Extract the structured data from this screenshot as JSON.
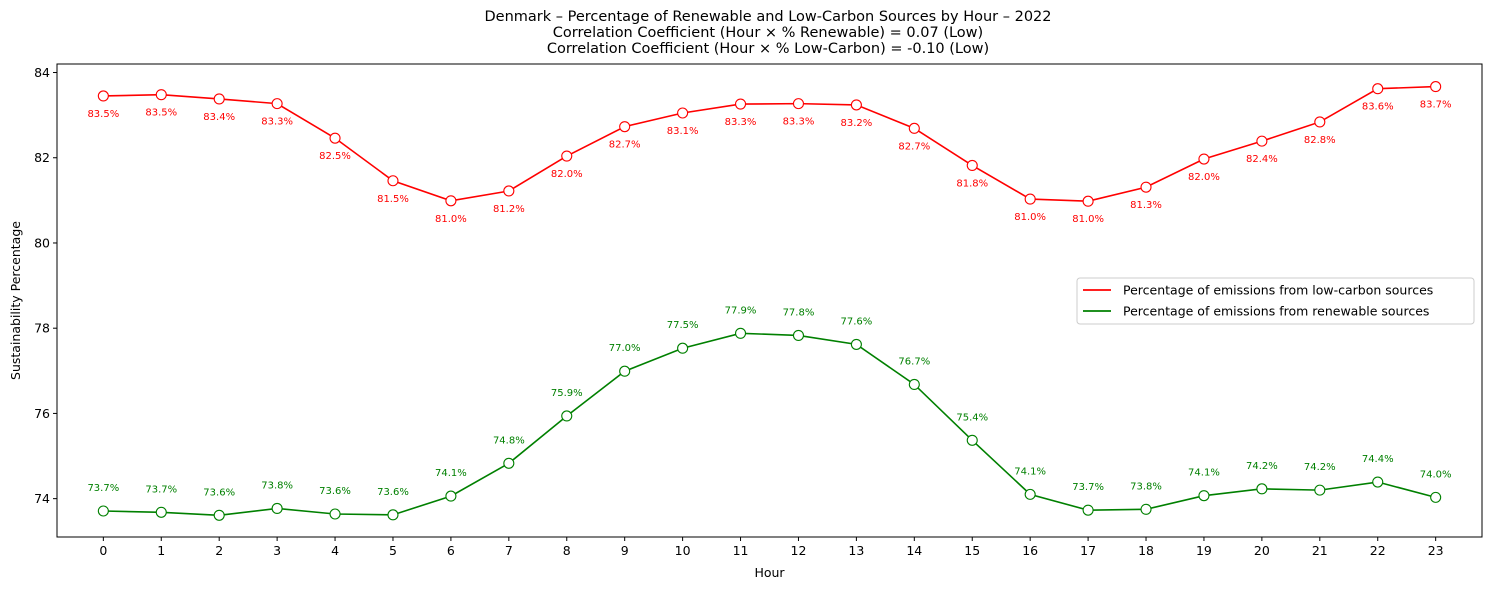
{
  "chart_data": {
    "type": "line",
    "title_lines": [
      "Denmark – Percentage of Renewable and Low-Carbon Sources by Hour – 2022",
      "Correlation Coefficient (Hour × % Renewable) = 0.07 (Low)",
      "Correlation Coefficient (Hour × % Low-Carbon) = -0.10 (Low)"
    ],
    "xlabel": "Hour",
    "ylabel": "Sustainability Percentage",
    "x": [
      0,
      1,
      2,
      3,
      4,
      5,
      6,
      7,
      8,
      9,
      10,
      11,
      12,
      13,
      14,
      15,
      16,
      17,
      18,
      19,
      20,
      21,
      22,
      23
    ],
    "x_tick_labels": [
      "0",
      "1",
      "2",
      "3",
      "4",
      "5",
      "6",
      "7",
      "8",
      "9",
      "10",
      "11",
      "12",
      "13",
      "14",
      "15",
      "16",
      "17",
      "18",
      "19",
      "20",
      "21",
      "22",
      "23"
    ],
    "y_ticks": [
      74,
      76,
      78,
      80,
      82,
      84
    ],
    "y_tick_labels": [
      "74",
      "76",
      "78",
      "80",
      "82",
      "84"
    ],
    "ylim": [
      73.1,
      84.2
    ],
    "xlim": [
      -0.8,
      23.8
    ],
    "grid": false,
    "legend_position": "center-right",
    "series": [
      {
        "name": "Percentage of emissions from low-carbon sources",
        "color": "#ff0000",
        "label_position": "below",
        "values": [
          83.45,
          83.48,
          83.38,
          83.27,
          82.46,
          81.46,
          80.99,
          81.22,
          82.04,
          82.73,
          83.05,
          83.26,
          83.27,
          83.24,
          82.69,
          81.82,
          81.03,
          80.98,
          81.31,
          81.97,
          82.39,
          82.84,
          83.62,
          83.67
        ],
        "data_labels": [
          "83.5%",
          "83.5%",
          "83.4%",
          "83.3%",
          "82.5%",
          "81.5%",
          "81.0%",
          "81.2%",
          "82.0%",
          "82.7%",
          "83.1%",
          "83.3%",
          "83.3%",
          "83.2%",
          "82.7%",
          "81.8%",
          "81.0%",
          "81.0%",
          "81.3%",
          "82.0%",
          "82.4%",
          "82.8%",
          "83.6%",
          "83.7%"
        ]
      },
      {
        "name": "Percentage of emissions from renewable sources",
        "color": "#008000",
        "label_position": "above",
        "values": [
          73.71,
          73.68,
          73.61,
          73.77,
          73.64,
          73.62,
          74.06,
          74.83,
          75.94,
          76.99,
          77.53,
          77.88,
          77.83,
          77.62,
          76.68,
          75.37,
          74.1,
          73.73,
          73.75,
          74.07,
          74.23,
          74.2,
          74.39,
          74.03
        ],
        "data_labels": [
          "73.7%",
          "73.7%",
          "73.6%",
          "73.8%",
          "73.6%",
          "73.6%",
          "74.1%",
          "74.8%",
          "75.9%",
          "77.0%",
          "77.5%",
          "77.9%",
          "77.8%",
          "77.6%",
          "76.7%",
          "75.4%",
          "74.1%",
          "73.7%",
          "73.8%",
          "74.1%",
          "74.2%",
          "74.2%",
          "74.4%",
          "74.0%"
        ]
      }
    ]
  }
}
